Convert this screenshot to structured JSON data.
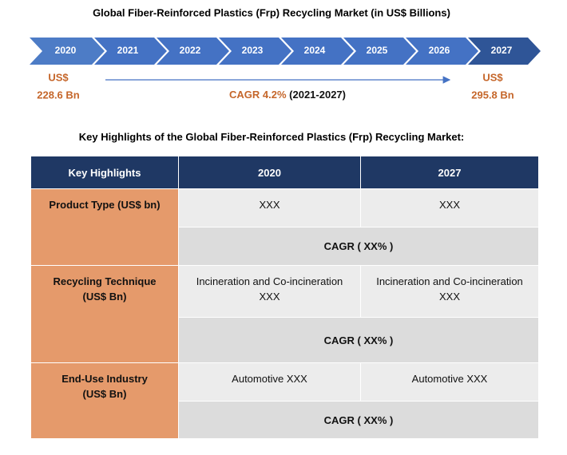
{
  "title": "Global Fiber-Reinforced Plastics (Frp) Recycling Market (in US$ Billions)",
  "timeline": {
    "years": [
      "2020",
      "2021",
      "2022",
      "2023",
      "2024",
      "2025",
      "2026",
      "2027"
    ],
    "start": {
      "currency": "US$",
      "value": "228.6 Bn"
    },
    "end": {
      "currency": "US$",
      "value": "295.8 Bn"
    },
    "cagr": {
      "label": "CAGR 4.2%",
      "period": "(2021-2027)"
    }
  },
  "table": {
    "title": "Key Highlights of the Global Fiber-Reinforced Plastics (Frp) Recycling Market:",
    "header": [
      "Key Highlights",
      "2020",
      "2027"
    ],
    "rows": [
      {
        "label": [
          "Product Type (US$ bn)"
        ],
        "values": [
          [
            "XXX"
          ],
          [
            "XXX"
          ]
        ],
        "cagr": "CAGR ( XX% )"
      },
      {
        "label": [
          "Recycling Technique",
          "(US$ Bn)"
        ],
        "values": [
          [
            "Incineration and Co-incineration",
            "XXX"
          ],
          [
            "Incineration and Co-incineration",
            "XXX"
          ]
        ],
        "cagr": "CAGR ( XX% )"
      },
      {
        "label": [
          "End-Use Industry",
          "(US$ Bn)"
        ],
        "values": [
          [
            "Automotive XXX"
          ],
          [
            "Automotive XXX"
          ]
        ],
        "cagr": "CAGR ( XX% )"
      }
    ]
  }
}
